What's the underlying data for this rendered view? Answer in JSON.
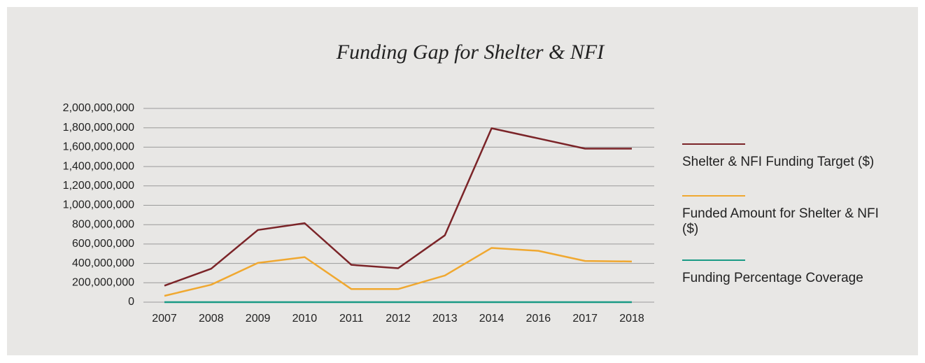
{
  "chart_data": {
    "type": "line",
    "title": "Funding Gap for Shelter & NFI",
    "categories": [
      "2007",
      "2008",
      "2009",
      "2010",
      "2011",
      "2012",
      "2013",
      "2014",
      "2016",
      "2017",
      "2018"
    ],
    "series": [
      {
        "name": "Shelter & NFI Funding Target ($)",
        "color": "#7b2428",
        "values": [
          170000000,
          345000000,
          745000000,
          815000000,
          385000000,
          350000000,
          690000000,
          1795000000,
          1690000000,
          1585000000,
          1585000000
        ]
      },
      {
        "name": "Funded Amount for Shelter & NFI ($)",
        "color": "#f0a830",
        "values": [
          65000000,
          180000000,
          405000000,
          465000000,
          135000000,
          135000000,
          275000000,
          560000000,
          530000000,
          425000000,
          420000000
        ]
      },
      {
        "name": "Funding Percentage Coverage",
        "color": "#1a9a85",
        "values": [
          0,
          0,
          0,
          0,
          0,
          0,
          0,
          0,
          0,
          0,
          0
        ]
      }
    ],
    "ylim": [
      0,
      2000000000
    ],
    "yticks": [
      0,
      {
        "value": 200000000,
        "label": "200,000,000"
      },
      {
        "value": 400000000,
        "label": "400,000,000"
      },
      {
        "value": 600000000,
        "label": "600,000,000"
      },
      {
        "value": 800000000,
        "label": "800,000,000"
      },
      {
        "value": 1000000000,
        "label": "1,000,000,000"
      },
      {
        "value": 1200000000,
        "label": "1,200,000,000"
      },
      {
        "value": 1400000000,
        "label": "1,400,000,000"
      },
      {
        "value": 1600000000,
        "label": "1,600,000,000"
      },
      {
        "value": 1800000000,
        "label": "1,800,000,000"
      },
      {
        "value": 2000000000,
        "label": "2,000,000,000"
      }
    ],
    "grid": true,
    "legend": "right"
  }
}
